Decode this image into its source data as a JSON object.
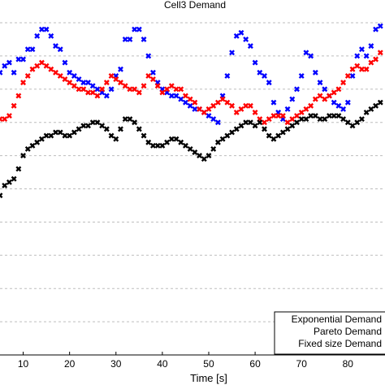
{
  "chart_data": {
    "type": "scatter",
    "title": "Cell3 Demand",
    "xlabel": "Time [s]",
    "ylabel": "",
    "xlim": [
      5,
      88
    ],
    "ylim": [
      0,
      100
    ],
    "x_ticks": [
      10,
      20,
      30,
      40,
      50,
      60,
      70,
      80
    ],
    "grid": true,
    "legend_position": "bottom-right",
    "series": [
      {
        "name": "Exponential Demand",
        "color": "#0000ff",
        "marker": "x",
        "points": [
          [
            5,
            85
          ],
          [
            6,
            87
          ],
          [
            7,
            88
          ],
          [
            8,
            85
          ],
          [
            9,
            89
          ],
          [
            10,
            89
          ],
          [
            11,
            92
          ],
          [
            12,
            92
          ],
          [
            13,
            96
          ],
          [
            14,
            98
          ],
          [
            15,
            98
          ],
          [
            16,
            96
          ],
          [
            17,
            93
          ],
          [
            18,
            92
          ],
          [
            19,
            88
          ],
          [
            20,
            85
          ],
          [
            21,
            84
          ],
          [
            22,
            83
          ],
          [
            23,
            82
          ],
          [
            24,
            82
          ],
          [
            25,
            81
          ],
          [
            26,
            80
          ],
          [
            27,
            79
          ],
          [
            28,
            78
          ],
          [
            29,
            80
          ],
          [
            30,
            84
          ],
          [
            31,
            86
          ],
          [
            32,
            95
          ],
          [
            33,
            95
          ],
          [
            34,
            98
          ],
          [
            35,
            98
          ],
          [
            36,
            95
          ],
          [
            37,
            90
          ],
          [
            38,
            85
          ],
          [
            39,
            82
          ],
          [
            40,
            80
          ],
          [
            41,
            79
          ],
          [
            42,
            78
          ],
          [
            43,
            78
          ],
          [
            44,
            77
          ],
          [
            45,
            76
          ],
          [
            46,
            75
          ],
          [
            47,
            74
          ],
          [
            48,
            74
          ],
          [
            49,
            73
          ],
          [
            50,
            72
          ],
          [
            51,
            71
          ],
          [
            52,
            70
          ],
          [
            53,
            78
          ],
          [
            54,
            84
          ],
          [
            55,
            91
          ],
          [
            56,
            96
          ],
          [
            57,
            97
          ],
          [
            58,
            95
          ],
          [
            59,
            93
          ],
          [
            60,
            88
          ],
          [
            61,
            85
          ],
          [
            62,
            84
          ],
          [
            63,
            82
          ],
          [
            64,
            76
          ],
          [
            65,
            73
          ],
          [
            66,
            71
          ],
          [
            67,
            74
          ],
          [
            68,
            77
          ],
          [
            69,
            80
          ],
          [
            70,
            84
          ],
          [
            71,
            91
          ],
          [
            72,
            90
          ],
          [
            73,
            85
          ],
          [
            74,
            82
          ],
          [
            75,
            80
          ],
          [
            76,
            78
          ],
          [
            77,
            76
          ],
          [
            78,
            75
          ],
          [
            79,
            74
          ],
          [
            80,
            76
          ],
          [
            81,
            84
          ],
          [
            82,
            90
          ],
          [
            83,
            92
          ],
          [
            84,
            90
          ],
          [
            85,
            93
          ],
          [
            86,
            98
          ],
          [
            87,
            99
          ]
        ]
      },
      {
        "name": "Pareto Demand",
        "color": "#ff0000",
        "marker": "x",
        "points": [
          [
            5,
            71
          ],
          [
            6,
            71
          ],
          [
            7,
            72
          ],
          [
            8,
            75
          ],
          [
            9,
            78
          ],
          [
            10,
            82
          ],
          [
            11,
            84
          ],
          [
            12,
            86
          ],
          [
            13,
            87
          ],
          [
            14,
            88
          ],
          [
            15,
            87
          ],
          [
            16,
            86
          ],
          [
            17,
            85
          ],
          [
            18,
            84
          ],
          [
            19,
            83
          ],
          [
            20,
            82
          ],
          [
            21,
            81
          ],
          [
            22,
            80
          ],
          [
            23,
            80
          ],
          [
            24,
            79
          ],
          [
            25,
            79
          ],
          [
            26,
            78
          ],
          [
            27,
            80
          ],
          [
            28,
            82
          ],
          [
            29,
            84
          ],
          [
            30,
            83
          ],
          [
            31,
            82
          ],
          [
            32,
            81
          ],
          [
            33,
            80
          ],
          [
            34,
            80
          ],
          [
            35,
            79
          ],
          [
            36,
            81
          ],
          [
            37,
            84
          ],
          [
            38,
            83
          ],
          [
            39,
            81
          ],
          [
            40,
            79
          ],
          [
            41,
            80
          ],
          [
            42,
            81
          ],
          [
            43,
            80
          ],
          [
            44,
            80
          ],
          [
            45,
            78
          ],
          [
            46,
            77
          ],
          [
            47,
            76
          ],
          [
            48,
            74
          ],
          [
            49,
            73
          ],
          [
            50,
            74
          ],
          [
            51,
            75
          ],
          [
            52,
            76
          ],
          [
            53,
            77
          ],
          [
            54,
            76
          ],
          [
            55,
            75
          ],
          [
            56,
            73
          ],
          [
            57,
            74
          ],
          [
            58,
            75
          ],
          [
            59,
            75
          ],
          [
            60,
            73
          ],
          [
            61,
            71
          ],
          [
            62,
            70
          ],
          [
            63,
            71
          ],
          [
            64,
            72
          ],
          [
            65,
            72
          ],
          [
            66,
            72
          ],
          [
            67,
            70
          ],
          [
            68,
            71
          ],
          [
            69,
            72
          ],
          [
            70,
            73
          ],
          [
            71,
            74
          ],
          [
            72,
            75
          ],
          [
            73,
            77
          ],
          [
            74,
            78
          ],
          [
            75,
            77
          ],
          [
            76,
            78
          ],
          [
            77,
            79
          ],
          [
            78,
            80
          ],
          [
            79,
            82
          ],
          [
            80,
            84
          ],
          [
            81,
            86
          ],
          [
            82,
            87
          ],
          [
            83,
            86
          ],
          [
            84,
            86
          ],
          [
            85,
            88
          ],
          [
            86,
            89
          ],
          [
            87,
            91
          ]
        ]
      },
      {
        "name": "Fixed size Demand",
        "color": "#000000",
        "marker": "x",
        "points": [
          [
            5,
            48
          ],
          [
            6,
            51
          ],
          [
            7,
            52
          ],
          [
            8,
            53
          ],
          [
            9,
            56
          ],
          [
            10,
            60
          ],
          [
            11,
            62
          ],
          [
            12,
            63
          ],
          [
            13,
            64
          ],
          [
            14,
            65
          ],
          [
            15,
            66
          ],
          [
            16,
            66
          ],
          [
            17,
            67
          ],
          [
            18,
            67
          ],
          [
            19,
            66
          ],
          [
            20,
            66
          ],
          [
            21,
            67
          ],
          [
            22,
            68
          ],
          [
            23,
            69
          ],
          [
            24,
            69
          ],
          [
            25,
            70
          ],
          [
            26,
            70
          ],
          [
            27,
            69
          ],
          [
            28,
            68
          ],
          [
            29,
            66
          ],
          [
            30,
            65
          ],
          [
            31,
            68
          ],
          [
            32,
            71
          ],
          [
            33,
            71
          ],
          [
            34,
            70
          ],
          [
            35,
            68
          ],
          [
            36,
            66
          ],
          [
            37,
            64
          ],
          [
            38,
            63
          ],
          [
            39,
            63
          ],
          [
            40,
            63
          ],
          [
            41,
            64
          ],
          [
            42,
            65
          ],
          [
            43,
            65
          ],
          [
            44,
            64
          ],
          [
            45,
            63
          ],
          [
            46,
            62
          ],
          [
            47,
            61
          ],
          [
            48,
            60
          ],
          [
            49,
            59
          ],
          [
            50,
            60
          ],
          [
            51,
            62
          ],
          [
            52,
            64
          ],
          [
            53,
            65
          ],
          [
            54,
            66
          ],
          [
            55,
            67
          ],
          [
            56,
            68
          ],
          [
            57,
            69
          ],
          [
            58,
            70
          ],
          [
            59,
            70
          ],
          [
            60,
            69
          ],
          [
            61,
            70
          ],
          [
            62,
            68
          ],
          [
            63,
            66
          ],
          [
            64,
            65
          ],
          [
            65,
            66
          ],
          [
            66,
            67
          ],
          [
            67,
            68
          ],
          [
            68,
            69
          ],
          [
            69,
            70
          ],
          [
            70,
            71
          ],
          [
            71,
            71
          ],
          [
            72,
            72
          ],
          [
            73,
            72
          ],
          [
            74,
            71
          ],
          [
            75,
            71
          ],
          [
            76,
            72
          ],
          [
            77,
            72
          ],
          [
            78,
            72
          ],
          [
            79,
            71
          ],
          [
            80,
            70
          ],
          [
            81,
            69
          ],
          [
            82,
            70
          ],
          [
            83,
            71
          ],
          [
            84,
            73
          ],
          [
            85,
            74
          ],
          [
            86,
            75
          ],
          [
            87,
            76
          ]
        ]
      }
    ]
  }
}
